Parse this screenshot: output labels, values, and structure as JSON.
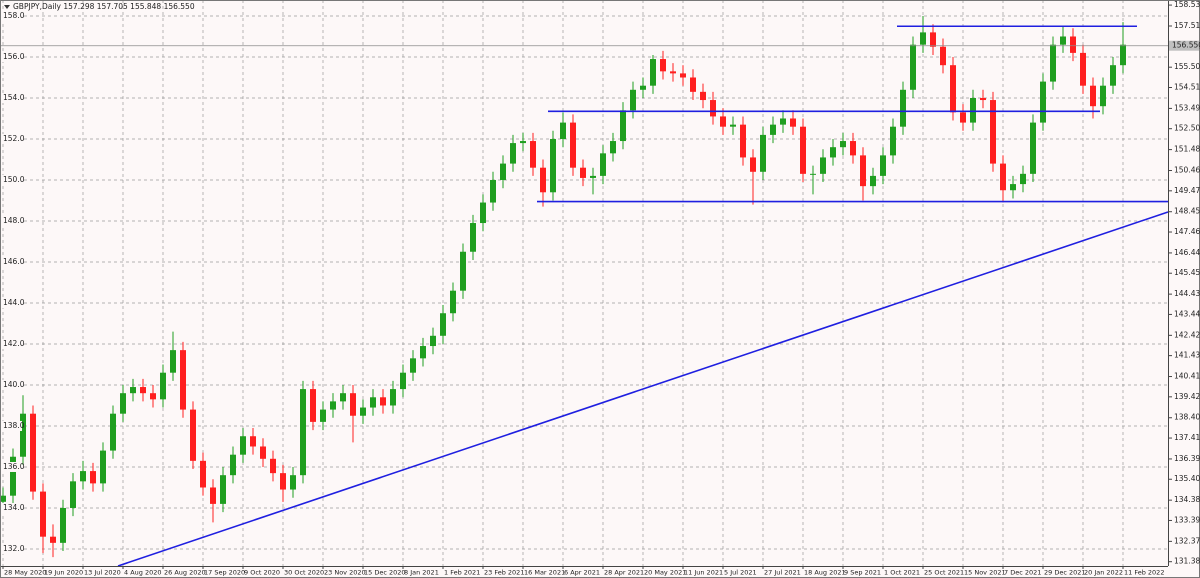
{
  "chart_data": {
    "type": "candlestick",
    "title": "GBPJPY,Daily 157.298 157.705 155.848 156.550",
    "up_color": "#1f9e1f",
    "down_color": "#ff1f1f",
    "level_color": "#1f1fe0",
    "grid": true,
    "ylim": [
      131.17,
      158.78
    ],
    "yticks": [
      {
        "value": 158,
        "label": "158.0"
      },
      {
        "value": 156,
        "label": "156.0"
      },
      {
        "value": 154,
        "label": "154.0"
      },
      {
        "value": 152,
        "label": "152.0"
      },
      {
        "value": 150,
        "label": "150.0"
      },
      {
        "value": 148,
        "label": "148.0"
      },
      {
        "value": 146,
        "label": "146.0"
      },
      {
        "value": 144,
        "label": "144.0"
      },
      {
        "value": 142,
        "label": "142.0"
      },
      {
        "value": 140,
        "label": "140.0"
      },
      {
        "value": 138,
        "label": "138.0"
      },
      {
        "value": 136,
        "label": "136.0"
      },
      {
        "value": 134,
        "label": "134.0"
      },
      {
        "value": 132,
        "label": "132.0"
      }
    ],
    "y2lim": [
      131.17,
      158.78
    ],
    "y2ticks": [
      158.532,
      157.512,
      156.522,
      155.502,
      154.512,
      153.492,
      152.502,
      151.482,
      150.462,
      149.472,
      148.452,
      147.462,
      146.442,
      145.452,
      144.432,
      143.442,
      142.422,
      141.432,
      140.412,
      139.422,
      138.402,
      137.412,
      136.392,
      135.402,
      134.382,
      133.392,
      132.372,
      {
        "value": 131.38,
        "label": "131.380"
      }
    ],
    "last_price": {
      "value": 156.55,
      "label": "156.550"
    },
    "levels": [
      157.5,
      153.35,
      148.95
    ],
    "xticks": [
      "28 May 2020",
      "19 Jun 2020",
      "13 Jul 2020",
      "4 Aug 2020",
      "26 Aug 2020",
      "17 Sep 2020",
      "9 Oct 2020",
      "30 Oct 2020",
      "23 Nov 2020",
      "15 Dec 2020",
      "8 Jan 2021",
      "1 Feb 2021",
      "23 Feb 2021",
      "16 Mar 2021",
      "6 Apr 2021",
      "28 Apr 2021",
      "20 May 2021",
      "11 Jun 2021",
      "5 Jul 2021",
      "27 Jul 2021",
      "18 Aug 2021",
      "9 Sep 2021",
      "1 Oct 2021",
      "25 Oct 2021",
      "15 Nov 2021",
      "7 Dec 2021",
      "29 Dec 2021",
      "20 Jan 2022",
      "11 Feb 2022"
    ],
    "open": [
      134.3,
      134.6,
      136.5,
      138.6,
      134.8,
      132.6,
      132.3,
      134.0,
      135.3,
      135.8,
      135.2,
      136.8,
      138.6,
      139.6,
      139.9,
      139.6,
      139.3,
      140.6,
      141.7,
      138.8,
      136.3,
      135.0,
      134.2,
      135.6,
      136.6,
      137.5,
      137.0,
      136.4,
      135.7,
      134.9,
      135.6,
      139.8,
      138.2,
      138.8,
      139.2,
      139.6,
      138.5,
      138.9,
      139.4,
      139.0,
      139.8,
      140.6,
      141.3,
      141.9,
      142.4,
      143.5,
      144.6,
      146.5,
      147.9,
      148.9,
      150.0,
      150.8,
      151.8,
      151.9,
      150.6,
      149.4,
      152.0,
      152.8,
      150.6,
      150.1,
      150.2,
      151.3,
      151.9,
      153.4,
      154.4,
      154.6,
      155.9,
      155.3,
      155.2,
      155.0,
      154.3,
      153.9,
      153.1,
      152.6,
      152.7,
      151.1,
      150.4,
      152.2,
      152.7,
      153.0,
      152.6,
      150.3,
      150.3,
      151.1,
      151.6,
      151.9,
      151.2,
      149.7,
      150.2,
      151.2,
      152.6,
      154.4,
      156.6,
      157.2,
      156.5,
      155.6,
      153.3,
      152.8,
      154.0,
      153.9,
      150.8,
      149.5,
      149.8,
      150.3,
      152.8,
      154.8,
      156.6,
      157.0,
      156.2,
      154.6,
      153.6,
      154.6,
      155.6
    ],
    "high": [
      135.0,
      136.9,
      139.5,
      139.0,
      135.2,
      133.2,
      134.4,
      135.7,
      136.3,
      136.2,
      137.2,
      139.0,
      140.0,
      140.3,
      140.3,
      140.0,
      141.0,
      142.6,
      142.1,
      139.2,
      136.7,
      135.4,
      136.0,
      137.0,
      137.9,
      137.9,
      137.4,
      136.8,
      136.1,
      136.0,
      140.2,
      140.2,
      139.2,
      139.6,
      140.0,
      140.0,
      139.3,
      139.8,
      139.8,
      140.2,
      141.0,
      141.7,
      142.3,
      142.8,
      143.9,
      145.0,
      146.9,
      148.3,
      149.3,
      150.4,
      151.2,
      152.2,
      152.3,
      152.3,
      151.0,
      152.4,
      153.3,
      153.2,
      151.0,
      150.6,
      151.7,
      152.3,
      153.8,
      154.8,
      155.0,
      156.1,
      156.3,
      155.7,
      155.6,
      155.4,
      154.7,
      154.3,
      153.5,
      153.1,
      153.1,
      151.5,
      152.6,
      153.1,
      153.4,
      153.4,
      153.0,
      150.7,
      151.5,
      152.0,
      152.3,
      152.3,
      151.6,
      150.6,
      151.6,
      153.0,
      154.8,
      157.0,
      158.0,
      157.6,
      156.9,
      156.0,
      153.7,
      154.4,
      154.4,
      154.3,
      151.2,
      150.2,
      150.7,
      153.2,
      155.2,
      157.0,
      157.5,
      157.4,
      156.6,
      155.0,
      155.0,
      156.0,
      157.7
    ],
    "low": [
      133.9,
      134.2,
      136.1,
      134.4,
      131.8,
      131.6,
      131.9,
      133.6,
      134.9,
      134.8,
      134.8,
      136.4,
      138.2,
      139.2,
      139.2,
      138.9,
      138.9,
      140.2,
      138.4,
      135.9,
      134.6,
      133.3,
      133.8,
      135.2,
      136.2,
      136.6,
      136.0,
      135.3,
      134.3,
      134.5,
      135.2,
      137.8,
      137.8,
      138.4,
      138.8,
      137.2,
      138.1,
      138.5,
      138.6,
      138.6,
      139.4,
      140.2,
      140.9,
      141.5,
      142.0,
      143.1,
      144.2,
      146.1,
      147.5,
      148.5,
      149.6,
      150.4,
      151.4,
      150.2,
      148.7,
      149.0,
      151.6,
      150.2,
      149.7,
      149.3,
      149.8,
      150.9,
      151.5,
      153.0,
      154.0,
      154.2,
      154.9,
      154.8,
      154.6,
      153.9,
      153.5,
      152.7,
      152.2,
      152.2,
      150.7,
      148.8,
      150.0,
      151.8,
      152.3,
      152.2,
      149.9,
      149.3,
      149.9,
      150.7,
      151.2,
      150.8,
      149.0,
      149.3,
      149.8,
      150.8,
      152.2,
      154.0,
      156.2,
      156.1,
      155.2,
      152.9,
      152.4,
      152.4,
      153.5,
      150.4,
      148.9,
      149.1,
      149.4,
      149.9,
      152.4,
      154.4,
      156.2,
      155.8,
      154.2,
      153.0,
      153.2,
      154.2,
      155.2
    ],
    "close": [
      134.6,
      136.5,
      138.6,
      134.8,
      132.6,
      132.3,
      134.0,
      135.3,
      135.8,
      135.2,
      136.8,
      138.6,
      139.6,
      139.9,
      139.6,
      139.3,
      140.6,
      141.7,
      138.8,
      136.3,
      135.0,
      134.2,
      135.6,
      136.6,
      137.5,
      137.0,
      136.4,
      135.7,
      134.9,
      135.6,
      139.8,
      138.2,
      138.8,
      139.2,
      139.6,
      138.5,
      138.9,
      139.4,
      139.0,
      139.8,
      140.6,
      141.3,
      141.9,
      142.4,
      143.5,
      144.6,
      146.5,
      147.9,
      148.9,
      150.0,
      150.8,
      151.8,
      151.9,
      150.6,
      149.4,
      152.0,
      152.8,
      150.6,
      150.1,
      150.2,
      151.3,
      151.9,
      153.4,
      154.4,
      154.6,
      155.9,
      155.3,
      155.2,
      155.0,
      154.3,
      153.9,
      153.1,
      152.6,
      152.7,
      151.1,
      150.4,
      152.2,
      152.7,
      153.0,
      152.6,
      150.3,
      150.3,
      151.1,
      151.6,
      151.9,
      151.2,
      149.7,
      150.2,
      151.2,
      152.6,
      154.4,
      156.6,
      157.2,
      156.5,
      155.6,
      153.3,
      152.8,
      154.0,
      153.9,
      150.8,
      149.5,
      149.8,
      150.3,
      152.8,
      154.8,
      156.6,
      157.0,
      156.2,
      154.6,
      153.6,
      154.6,
      155.6,
      156.6
    ]
  }
}
